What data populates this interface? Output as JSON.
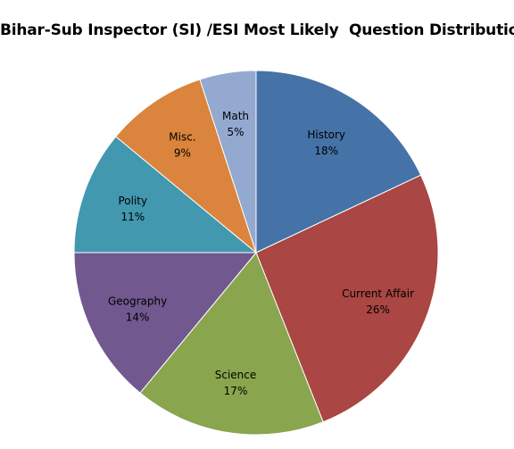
{
  "chart_data": {
    "type": "pie",
    "title": "Bihar-Sub Inspector (SI) /ESI Most Likely  Question Distribution",
    "categories": [
      "History",
      "Current Affair",
      "Science",
      "Geography",
      "Polity",
      "Misc.",
      "Math"
    ],
    "values": [
      18,
      26,
      17,
      14,
      11,
      9,
      5
    ],
    "value_labels": [
      "18%",
      "26%",
      "17%",
      "14%",
      "11%",
      "9%",
      "5%"
    ],
    "colors": [
      "#4572A7",
      "#AA4643",
      "#89A54E",
      "#71588F",
      "#4198AF",
      "#DB843D",
      "#93A9CF"
    ],
    "start": "12 o'clock, clockwise",
    "legend": "none (labels inside slices)"
  }
}
